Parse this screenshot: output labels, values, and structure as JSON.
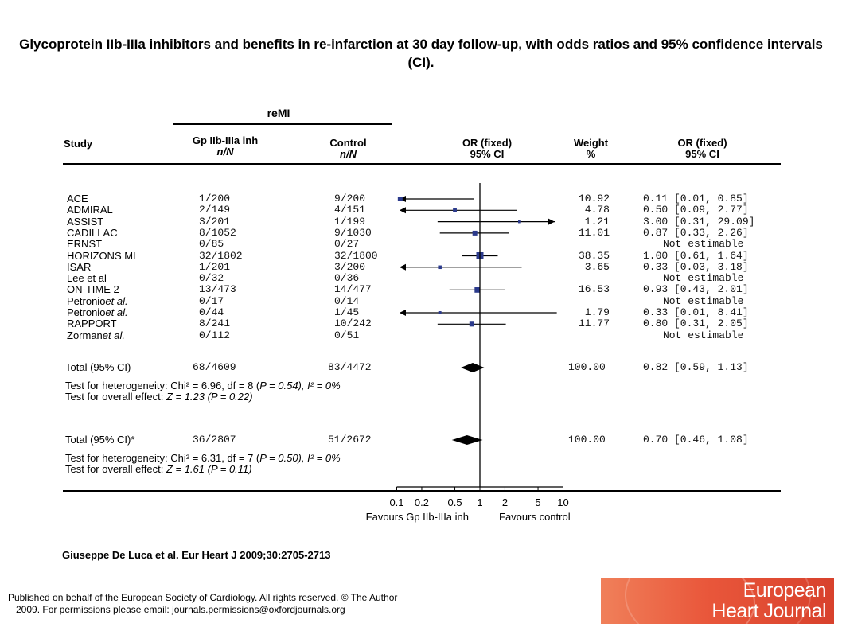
{
  "title": "Glycoprotein IIb-IIIa inhibitors and benefits in re-infarction at 30 day follow-up, with odds ratios and 95% confidence intervals (CI).",
  "headers": {
    "outcome": "reMI",
    "study": "Study",
    "treatment": "Gp IIb-IIIa inh",
    "treatment_sub": "n/N",
    "control": "Control",
    "control_sub": "n/N",
    "or_plot": "OR (fixed)",
    "or_plot_sub": "95% CI",
    "weight": "Weight",
    "weight_sub": "%",
    "or_text": "OR (fixed)",
    "or_text_sub": "95% CI"
  },
  "chart_data": {
    "type": "forest",
    "xscale": "log",
    "xlim": [
      0.1,
      10
    ],
    "xticks": [
      "0.1",
      "0.2",
      "0.5",
      "1",
      "2",
      "5",
      "10"
    ],
    "xlabel_left": "Favours Gp IIb-IIIa inh",
    "xlabel_right": "Favours control",
    "studies": [
      {
        "name": "ACE",
        "treat": "1/200",
        "ctrl": "9/200",
        "weight": "10.92",
        "or_text": "0.11 [0.01, 0.85]",
        "or": 0.11,
        "lo": 0.01,
        "hi": 0.85
      },
      {
        "name": "ADMIRAL",
        "treat": "2/149",
        "ctrl": "4/151",
        "weight": "4.78",
        "or_text": "0.50 [0.09, 2.77]",
        "or": 0.5,
        "lo": 0.09,
        "hi": 2.77
      },
      {
        "name": "ASSIST",
        "treat": "3/201",
        "ctrl": "1/199",
        "weight": "1.21",
        "or_text": "3.00 [0.31, 29.09]",
        "or": 3.0,
        "lo": 0.31,
        "hi": 29.09
      },
      {
        "name": "CADILLAC",
        "treat": "8/1052",
        "ctrl": "9/1030",
        "weight": "11.01",
        "or_text": "0.87 [0.33, 2.26]",
        "or": 0.87,
        "lo": 0.33,
        "hi": 2.26
      },
      {
        "name": "ERNST",
        "treat": "0/85",
        "ctrl": "0/27",
        "weight": "",
        "or_text": "Not estimable",
        "or": null,
        "lo": null,
        "hi": null
      },
      {
        "name": "HORIZONS MI",
        "treat": "32/1802",
        "ctrl": "32/1800",
        "weight": "38.35",
        "or_text": "1.00 [0.61, 1.64]",
        "or": 1.0,
        "lo": 0.61,
        "hi": 1.64
      },
      {
        "name": "ISAR",
        "treat": "1/201",
        "ctrl": "3/200",
        "weight": "3.65",
        "or_text": "0.33 [0.03, 3.18]",
        "or": 0.33,
        "lo": 0.03,
        "hi": 3.18
      },
      {
        "name": "Lee et al",
        "treat": "0/32",
        "ctrl": "0/36",
        "weight": "",
        "or_text": "Not estimable",
        "or": null,
        "lo": null,
        "hi": null
      },
      {
        "name": "ON-TIME 2",
        "treat": "13/473",
        "ctrl": "14/477",
        "weight": "16.53",
        "or_text": "0.93 [0.43, 2.01]",
        "or": 0.93,
        "lo": 0.43,
        "hi": 2.01
      },
      {
        "name": "Petronio",
        "name_suffix": "et al.",
        "treat": "0/17",
        "ctrl": "0/14",
        "weight": "",
        "or_text": "Not estimable",
        "or": null,
        "lo": null,
        "hi": null
      },
      {
        "name": "Petronio",
        "name_suffix": "et al.",
        "treat": "0/44",
        "ctrl": "1/45",
        "weight": "1.79",
        "or_text": "0.33 [0.01, 8.41]",
        "or": 0.33,
        "lo": 0.01,
        "hi": 8.41
      },
      {
        "name": "RAPPORT",
        "treat": "8/241",
        "ctrl": "10/242",
        "weight": "11.77",
        "or_text": "0.80 [0.31, 2.05]",
        "or": 0.8,
        "lo": 0.31,
        "hi": 2.05
      },
      {
        "name": "Zorman",
        "name_suffix": "et al.",
        "treat": "0/112",
        "ctrl": "0/51",
        "weight": "",
        "or_text": "Not estimable",
        "or": null,
        "lo": null,
        "hi": null
      }
    ],
    "totals": [
      {
        "label": "Total (95% CI)",
        "treat": "68/4609",
        "ctrl": "83/4472",
        "weight": "100.00",
        "or_text": "0.82 [0.59, 1.13]",
        "or": 0.82,
        "lo": 0.59,
        "hi": 1.13,
        "het_prefix": "Test for heterogeneity: Chi² = 6.96, df = 8 (",
        "het_p": "P = 0.54), ",
        "het_i": "I² = 0%",
        "eff_prefix": "Test for overall effect: ",
        "eff_z": "Z = 1.23 (",
        "eff_p": "P = 0.22)"
      },
      {
        "label": "Total (95% CI)*",
        "treat": "36/2807",
        "ctrl": "51/2672",
        "weight": "100.00",
        "or_text": "0.70 [0.46, 1.08]",
        "or": 0.7,
        "lo": 0.46,
        "hi": 1.08,
        "het_prefix": "Test for heterogeneity: Chi² = 6.31, df = 7 (",
        "het_p": "P = 0.50), ",
        "het_i": "I² = 0%",
        "eff_prefix": "Test for overall effect: ",
        "eff_z": "Z = 1.61 (",
        "eff_p": "P = 0.11)"
      }
    ]
  },
  "citation": "Giuseppe De Luca et al. Eur Heart J 2009;30:2705-2713",
  "footer": {
    "line1": "Published on behalf of the European Society of Cardiology. All rights reserved. © The Author",
    "line2": "2009. For permissions please email: journals.permissions@oxfordjournals.org"
  },
  "logo": {
    "line1": "European",
    "line2": "Heart Journal"
  },
  "colors": {
    "marker": "#2b3a8c",
    "logo": "#e9573b"
  }
}
